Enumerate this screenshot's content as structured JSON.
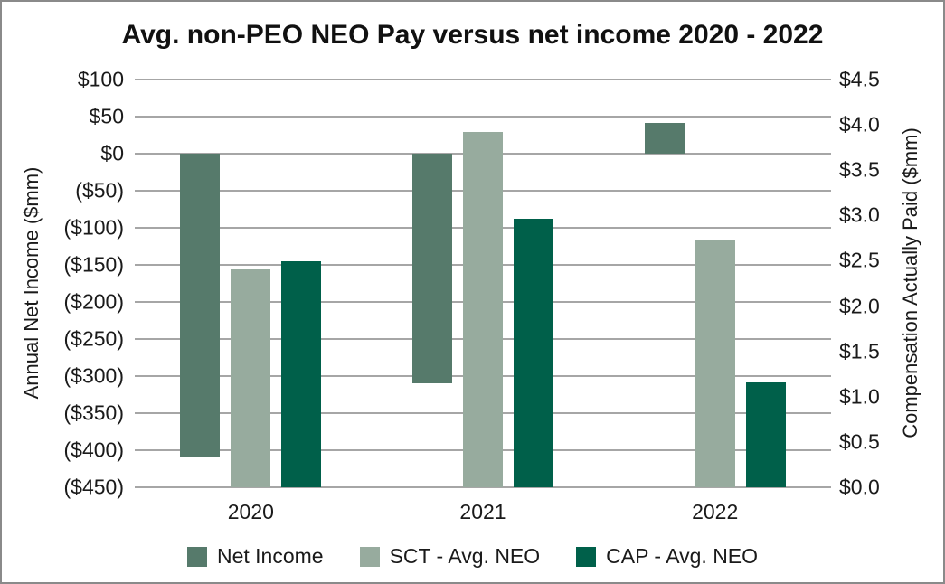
{
  "chart_data": {
    "type": "bar",
    "title": "Avg. non-PEO NEO Pay versus net income 2020 - 2022",
    "categories": [
      "2020",
      "2021",
      "2022"
    ],
    "series": [
      {
        "name": "Net Income",
        "axis": "left",
        "color": "#567a6b",
        "values": [
          -410,
          -310,
          42
        ]
      },
      {
        "name": "SCT - Avg. NEO",
        "axis": "right",
        "color": "#97ab9e",
        "values": [
          2.4,
          3.92,
          2.72
        ]
      },
      {
        "name": "CAP - Avg. NEO",
        "axis": "right",
        "color": "#00604a",
        "values": [
          2.49,
          2.96,
          1.16
        ]
      }
    ],
    "left_axis": {
      "title": "Annual Net Income ($mm)",
      "max": 100,
      "min": -450,
      "tick_step": 50,
      "tick_labels": [
        "$100",
        "$50",
        "$0",
        "($50)",
        "($100)",
        "($150)",
        "($200)",
        "($250)",
        "($300)",
        "($350)",
        "($400)",
        "($450)"
      ]
    },
    "right_axis": {
      "title": "Compensation Actually Paid ($mm)",
      "max": 4.5,
      "min": 0,
      "tick_step": 0.5,
      "tick_labels": [
        "$4.5",
        "$4.0",
        "$3.5",
        "$3.0",
        "$2.5",
        "$2.0",
        "$1.5",
        "$1.0",
        "$0.5",
        "$0.0"
      ]
    },
    "grid": true,
    "legend_position": "bottom",
    "colors": {
      "gridline": "#a6a6a6",
      "text": "#1a1a1a",
      "border": "#8a8a8a",
      "background": "#ffffff"
    }
  }
}
